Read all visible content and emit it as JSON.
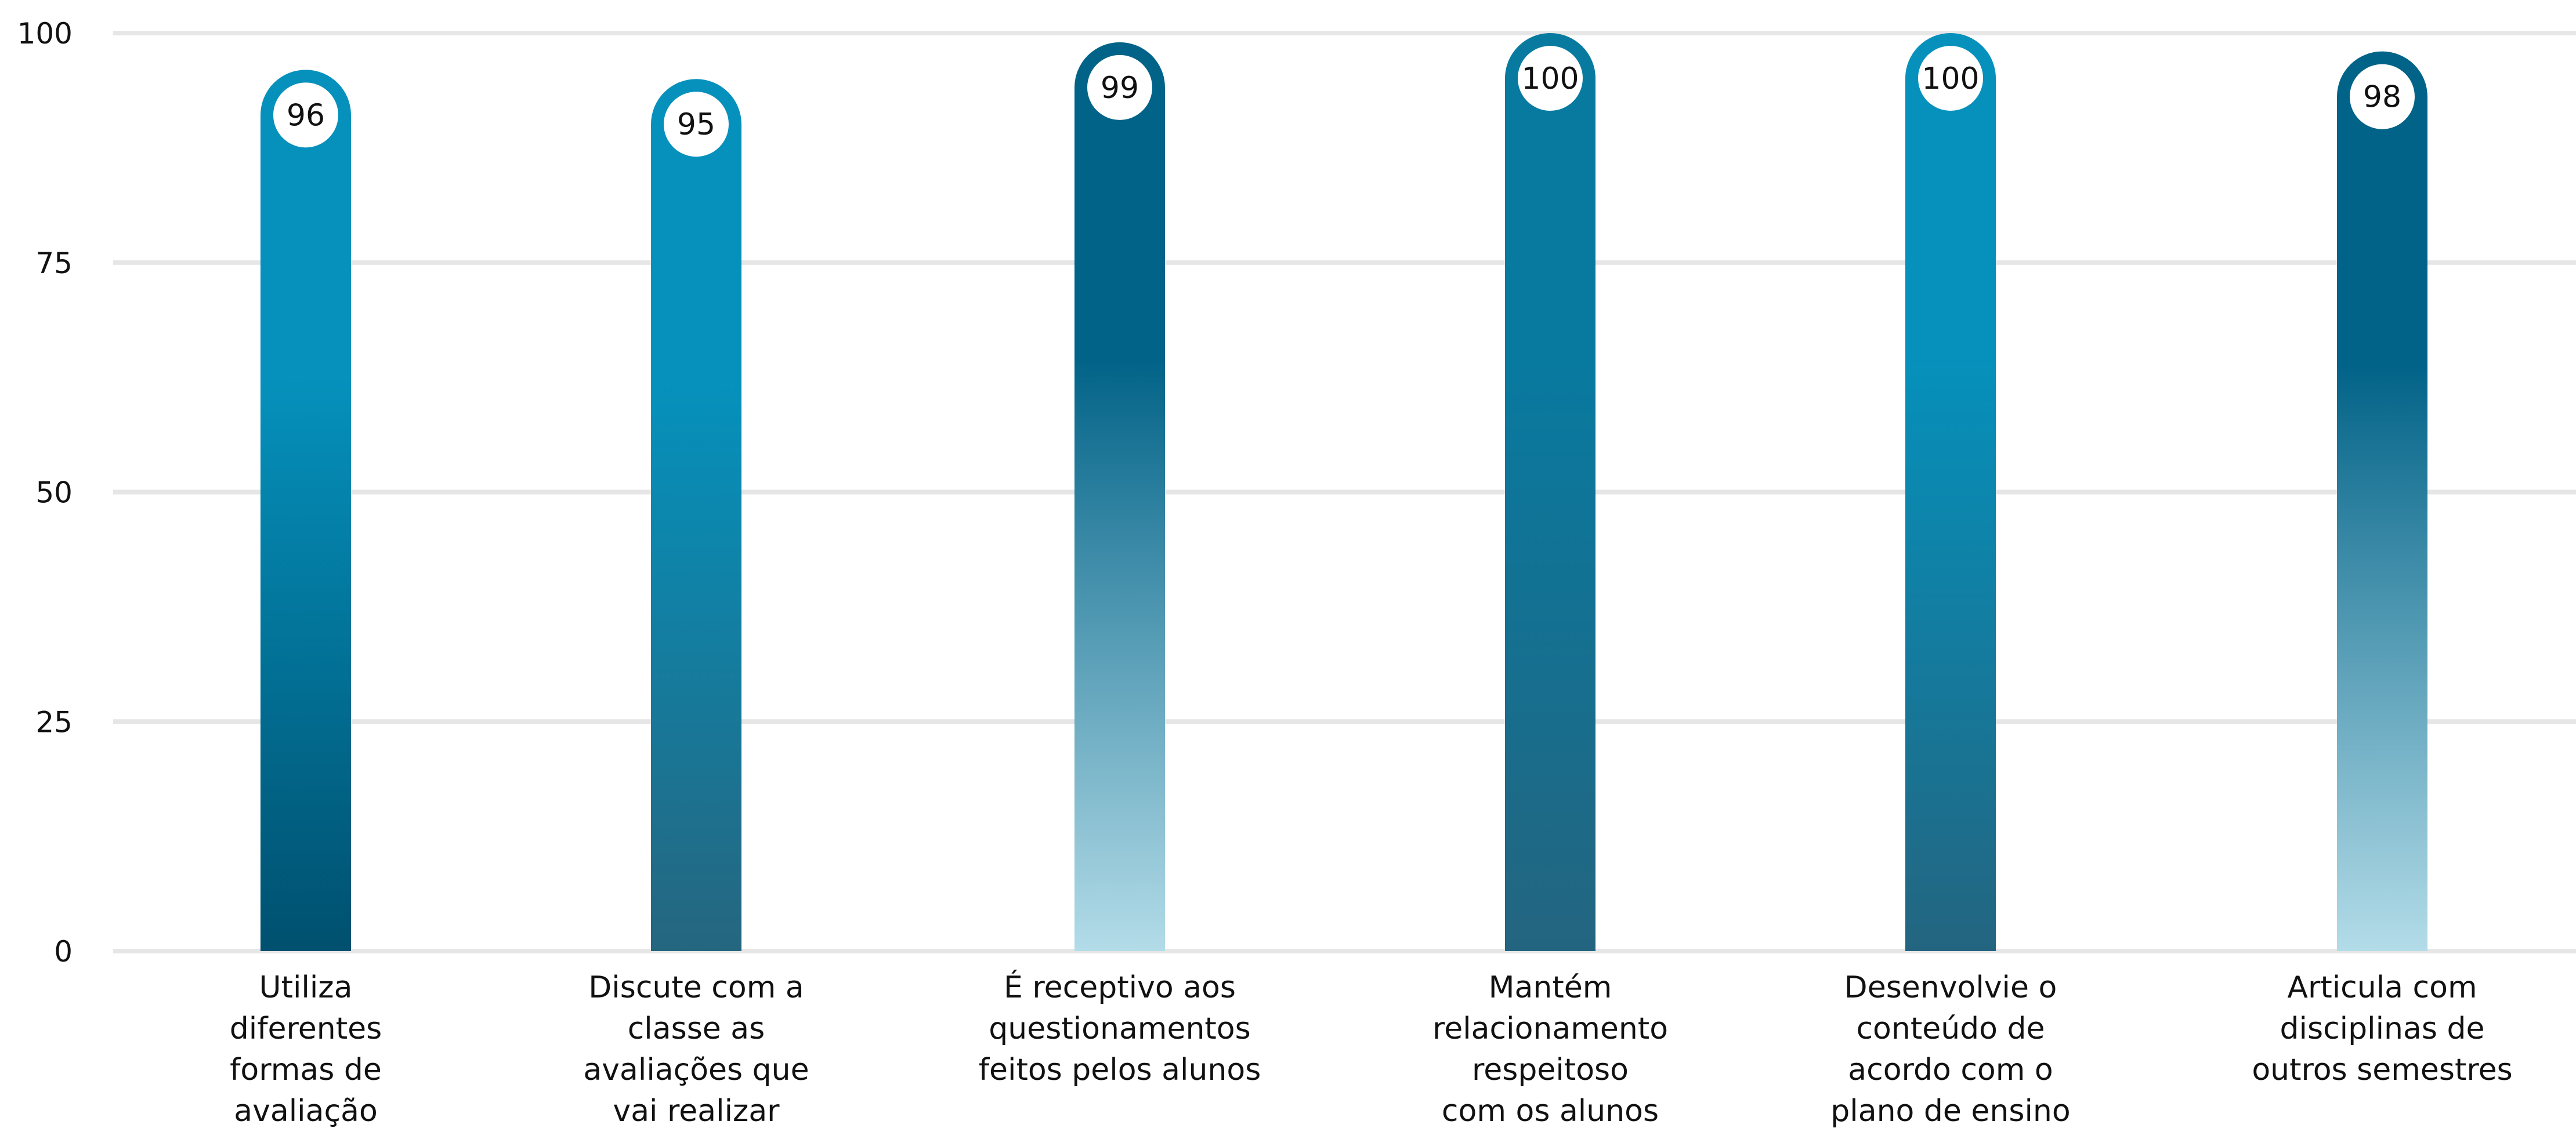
{
  "chart_data": {
    "type": "bar",
    "title": "",
    "xlabel": "",
    "ylabel": "",
    "ylim": [
      0,
      100
    ],
    "yticks": [
      0,
      25,
      50,
      75,
      100
    ],
    "grid": true,
    "legend": "none",
    "categories": [
      "Utiliza\ndiferentes\nformas de\navaliação",
      "Discute com a\nclasse as\navaliações que\nvai realizar",
      "É receptivo aos\nquestionamentos\nfeitos pelos alunos",
      "Mantém\nrelacionamento\nrespeitoso\ncom os alunos",
      "Desenvolvie o\nconteúdo de\nacordo com o\nplano de ensino",
      "Articula com\ndisciplinas de\noutros semestres"
    ],
    "values": [
      96,
      95,
      99,
      100,
      100,
      98
    ],
    "bar_gradients": [
      [
        "#0591bc",
        "#00506f"
      ],
      [
        "#0591bc",
        "#25667f"
      ],
      [
        "#026388",
        "#b3dce8"
      ],
      [
        "#087aa0",
        "#236580"
      ],
      [
        "#0591bc",
        "#236580"
      ],
      [
        "#026388",
        "#b3dce8"
      ]
    ]
  },
  "colors": {
    "grid": "#e6e6e6",
    "text": "#111111",
    "badge_fill": "#ffffff",
    "badge_text": "#111111"
  }
}
